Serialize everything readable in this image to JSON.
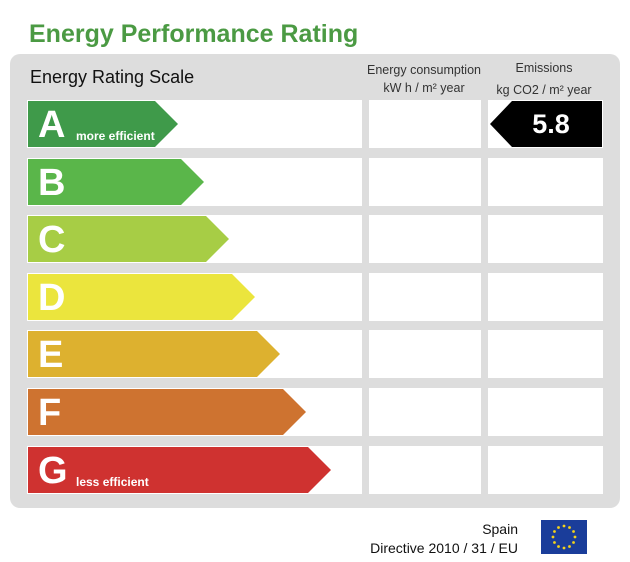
{
  "title": "Energy Performance Rating",
  "scale_title": "Energy Rating Scale",
  "columns": {
    "energy_line1": "Energy consumption",
    "energy_line2": "kW h / m² year",
    "emissions_line1": "Emissions",
    "emissions_line2": "kg CO2 / m² year"
  },
  "bands": [
    {
      "letter": "A",
      "note": "more efficient",
      "color": "#3f9a4a"
    },
    {
      "letter": "B",
      "note": "",
      "color": "#5ab64a"
    },
    {
      "letter": "C",
      "note": "",
      "color": "#a7cd45"
    },
    {
      "letter": "D",
      "note": "",
      "color": "#ebe53d"
    },
    {
      "letter": "E",
      "note": "",
      "color": "#ddb12f"
    },
    {
      "letter": "F",
      "note": "",
      "color": "#ce7330"
    },
    {
      "letter": "G",
      "note": "less efficient",
      "color": "#cf3230"
    }
  ],
  "emissions_rating": {
    "band": "A",
    "value": "5.8",
    "color": "#000000"
  },
  "energy_rating": null,
  "footer": {
    "country": "Spain",
    "directive": "Directive 2010 / 31 / EU"
  },
  "colors": {
    "title": "#4b9a43",
    "panel": "#dddddd",
    "flag_blue": "#1a3d9a",
    "flag_stars": "#f3d21a"
  },
  "icons": {
    "flag": "eu-flag-icon"
  }
}
